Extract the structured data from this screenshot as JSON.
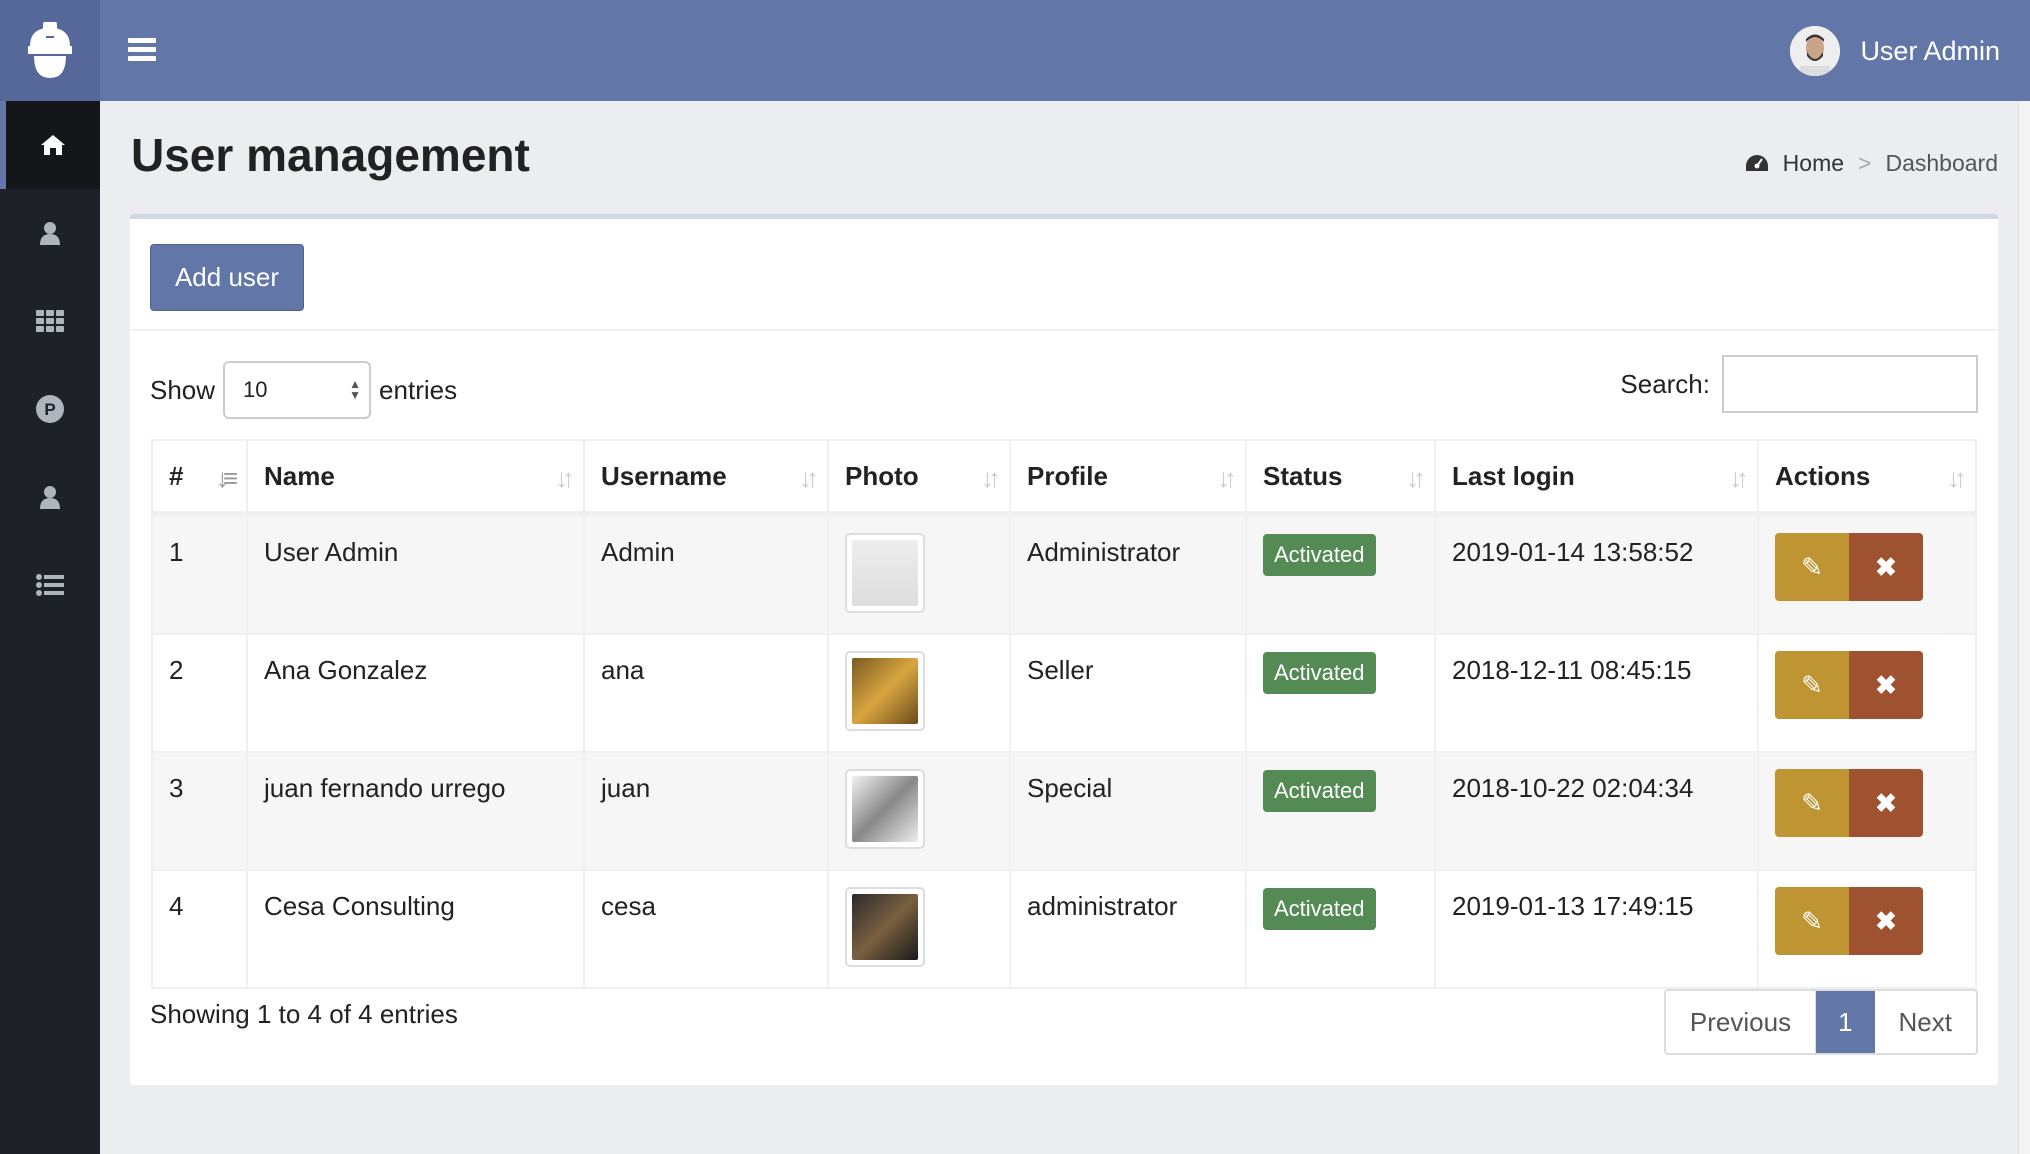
{
  "header": {
    "user_name": "User Admin"
  },
  "sidebar": {
    "items": [
      {
        "icon": "home-icon"
      },
      {
        "icon": "user-icon"
      },
      {
        "icon": "grid-icon"
      },
      {
        "icon": "p-circle-icon"
      },
      {
        "icon": "user-icon"
      },
      {
        "icon": "list-icon"
      }
    ]
  },
  "page": {
    "title": "User management"
  },
  "breadcrumb": {
    "home": "Home",
    "separator": ">",
    "current": "Dashboard"
  },
  "toolbar": {
    "add_user": "Add user"
  },
  "table_controls": {
    "show": "Show",
    "entries_value": "10",
    "entries": "entries",
    "search_label": "Search:",
    "search_value": ""
  },
  "table": {
    "columns": [
      "#",
      "Name",
      "Username",
      "Photo",
      "Profile",
      "Status",
      "Last login",
      "Actions"
    ],
    "rows": [
      {
        "n": "1",
        "name": "User Admin",
        "username": "Admin",
        "profile": "Administrator",
        "status": "Activated",
        "last_login": "2019-01-14 13:58:52"
      },
      {
        "n": "2",
        "name": "Ana Gonzalez",
        "username": "ana",
        "profile": "Seller",
        "status": "Activated",
        "last_login": "2018-12-11 08:45:15"
      },
      {
        "n": "3",
        "name": "juan fernando urrego",
        "username": "juan",
        "profile": "Special",
        "status": "Activated",
        "last_login": "2018-10-22 02:04:34"
      },
      {
        "n": "4",
        "name": "Cesa Consulting",
        "username": "cesa",
        "profile": "administrator",
        "status": "Activated",
        "last_login": "2019-01-13 17:49:15"
      }
    ]
  },
  "footer": {
    "info": "Showing 1 to 4 of 4 entries",
    "previous": "Previous",
    "page": "1",
    "next": "Next"
  },
  "colors": {
    "primary": "#6277a8",
    "sidebar": "#1e2128",
    "edit": "#bf9433",
    "delete": "#9e5230",
    "activated": "#548b54"
  }
}
